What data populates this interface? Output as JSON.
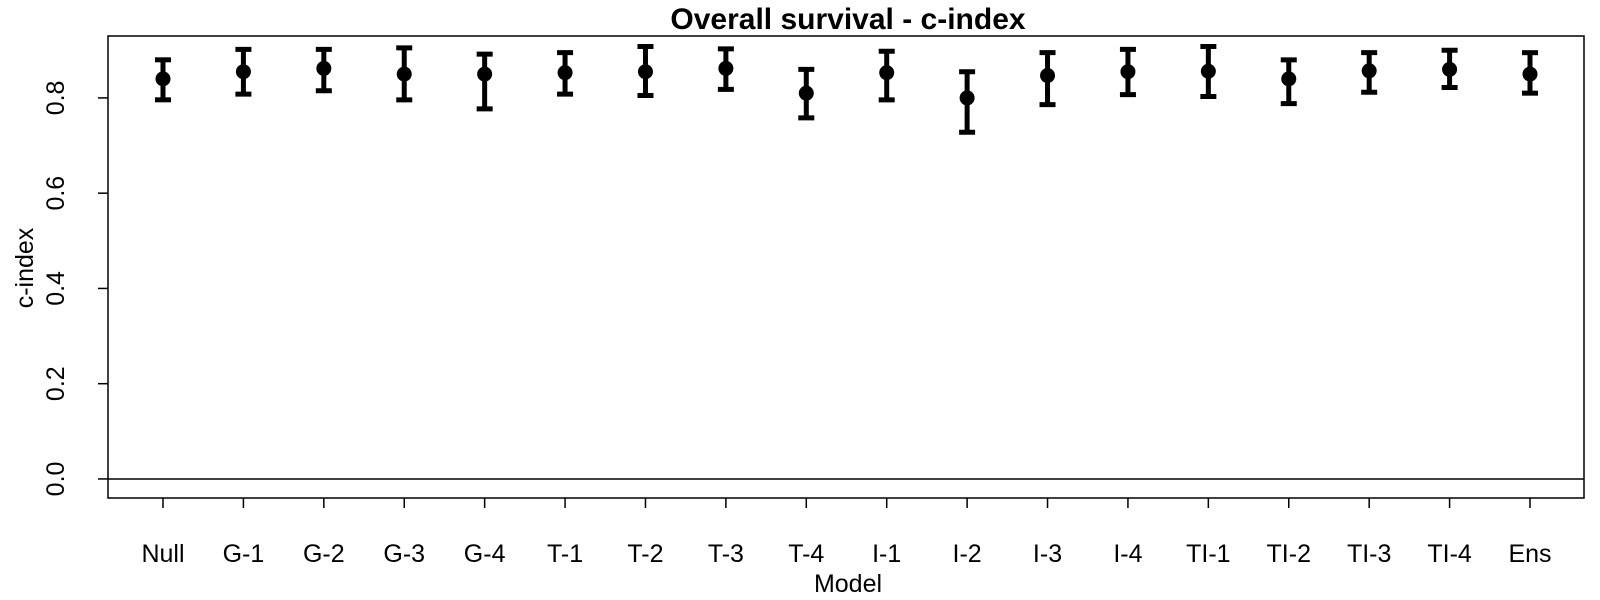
{
  "chart_data": {
    "type": "scatter",
    "title": "Overall survival - c-index",
    "xlabel": "Model",
    "ylabel": "c-index",
    "ylim": [
      -0.04,
      0.93
    ],
    "yticks": [
      "0.0",
      "0.2",
      "0.4",
      "0.6",
      "0.8"
    ],
    "grid": false,
    "reference_line_y": 0,
    "categories": [
      "Null",
      "G-1",
      "G-2",
      "G-3",
      "G-4",
      "T-1",
      "T-2",
      "T-3",
      "T-4",
      "I-1",
      "I-2",
      "I-3",
      "I-4",
      "TI-1",
      "TI-2",
      "TI-3",
      "TI-4",
      "Ens"
    ],
    "series": [
      {
        "values": [
          0.84,
          0.855,
          0.862,
          0.85,
          0.85,
          0.853,
          0.855,
          0.862,
          0.81,
          0.853,
          0.8,
          0.847,
          0.855,
          0.856,
          0.84,
          0.857,
          0.86,
          0.85
        ],
        "lower": [
          0.796,
          0.808,
          0.815,
          0.796,
          0.777,
          0.808,
          0.805,
          0.818,
          0.758,
          0.796,
          0.728,
          0.786,
          0.807,
          0.803,
          0.788,
          0.812,
          0.822,
          0.81
        ],
        "upper": [
          0.88,
          0.902,
          0.902,
          0.905,
          0.892,
          0.895,
          0.908,
          0.903,
          0.86,
          0.898,
          0.855,
          0.895,
          0.902,
          0.908,
          0.88,
          0.895,
          0.9,
          0.895
        ]
      }
    ],
    "color": "#000000"
  }
}
